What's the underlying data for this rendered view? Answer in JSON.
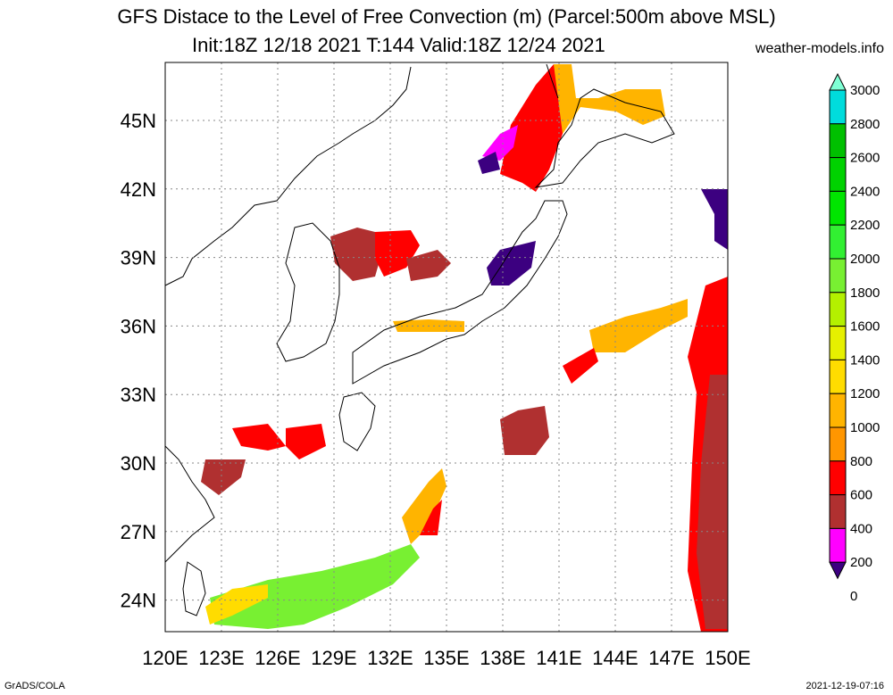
{
  "header": {
    "title_line1": "GFS Distace to the Level of Free Convection (m) (Parcel:500m above MSL)",
    "title_line2": "Init:18Z 12/18 2021 T:144 Valid:18Z 12/24 2021",
    "site": "weather-models.info"
  },
  "axes": {
    "lon_labels": [
      "120E",
      "123E",
      "126E",
      "129E",
      "132E",
      "135E",
      "138E",
      "141E",
      "144E",
      "147E",
      "150E"
    ],
    "lat_labels": [
      "45N",
      "42N",
      "39N",
      "36N",
      "33N",
      "30N",
      "27N",
      "24N"
    ]
  },
  "legend": {
    "labels": [
      "3000",
      "2800",
      "2600",
      "2400",
      "2200",
      "2000",
      "1800",
      "1600",
      "1400",
      "1200",
      "1000",
      "800",
      "600",
      "400",
      "200",
      "0"
    ],
    "colors": [
      "#7fffd4",
      "#00dcdc",
      "#00c000",
      "#00d200",
      "#00e600",
      "#32f032",
      "#78f032",
      "#b4f000",
      "#e6f000",
      "#ffdc00",
      "#ffb400",
      "#ff9600",
      "#ff0000",
      "#b03030",
      "#ff00ff",
      "#3c0080"
    ]
  },
  "footer": {
    "left": "GrADS/COLA",
    "right": "2021-12-19-07:16"
  }
}
